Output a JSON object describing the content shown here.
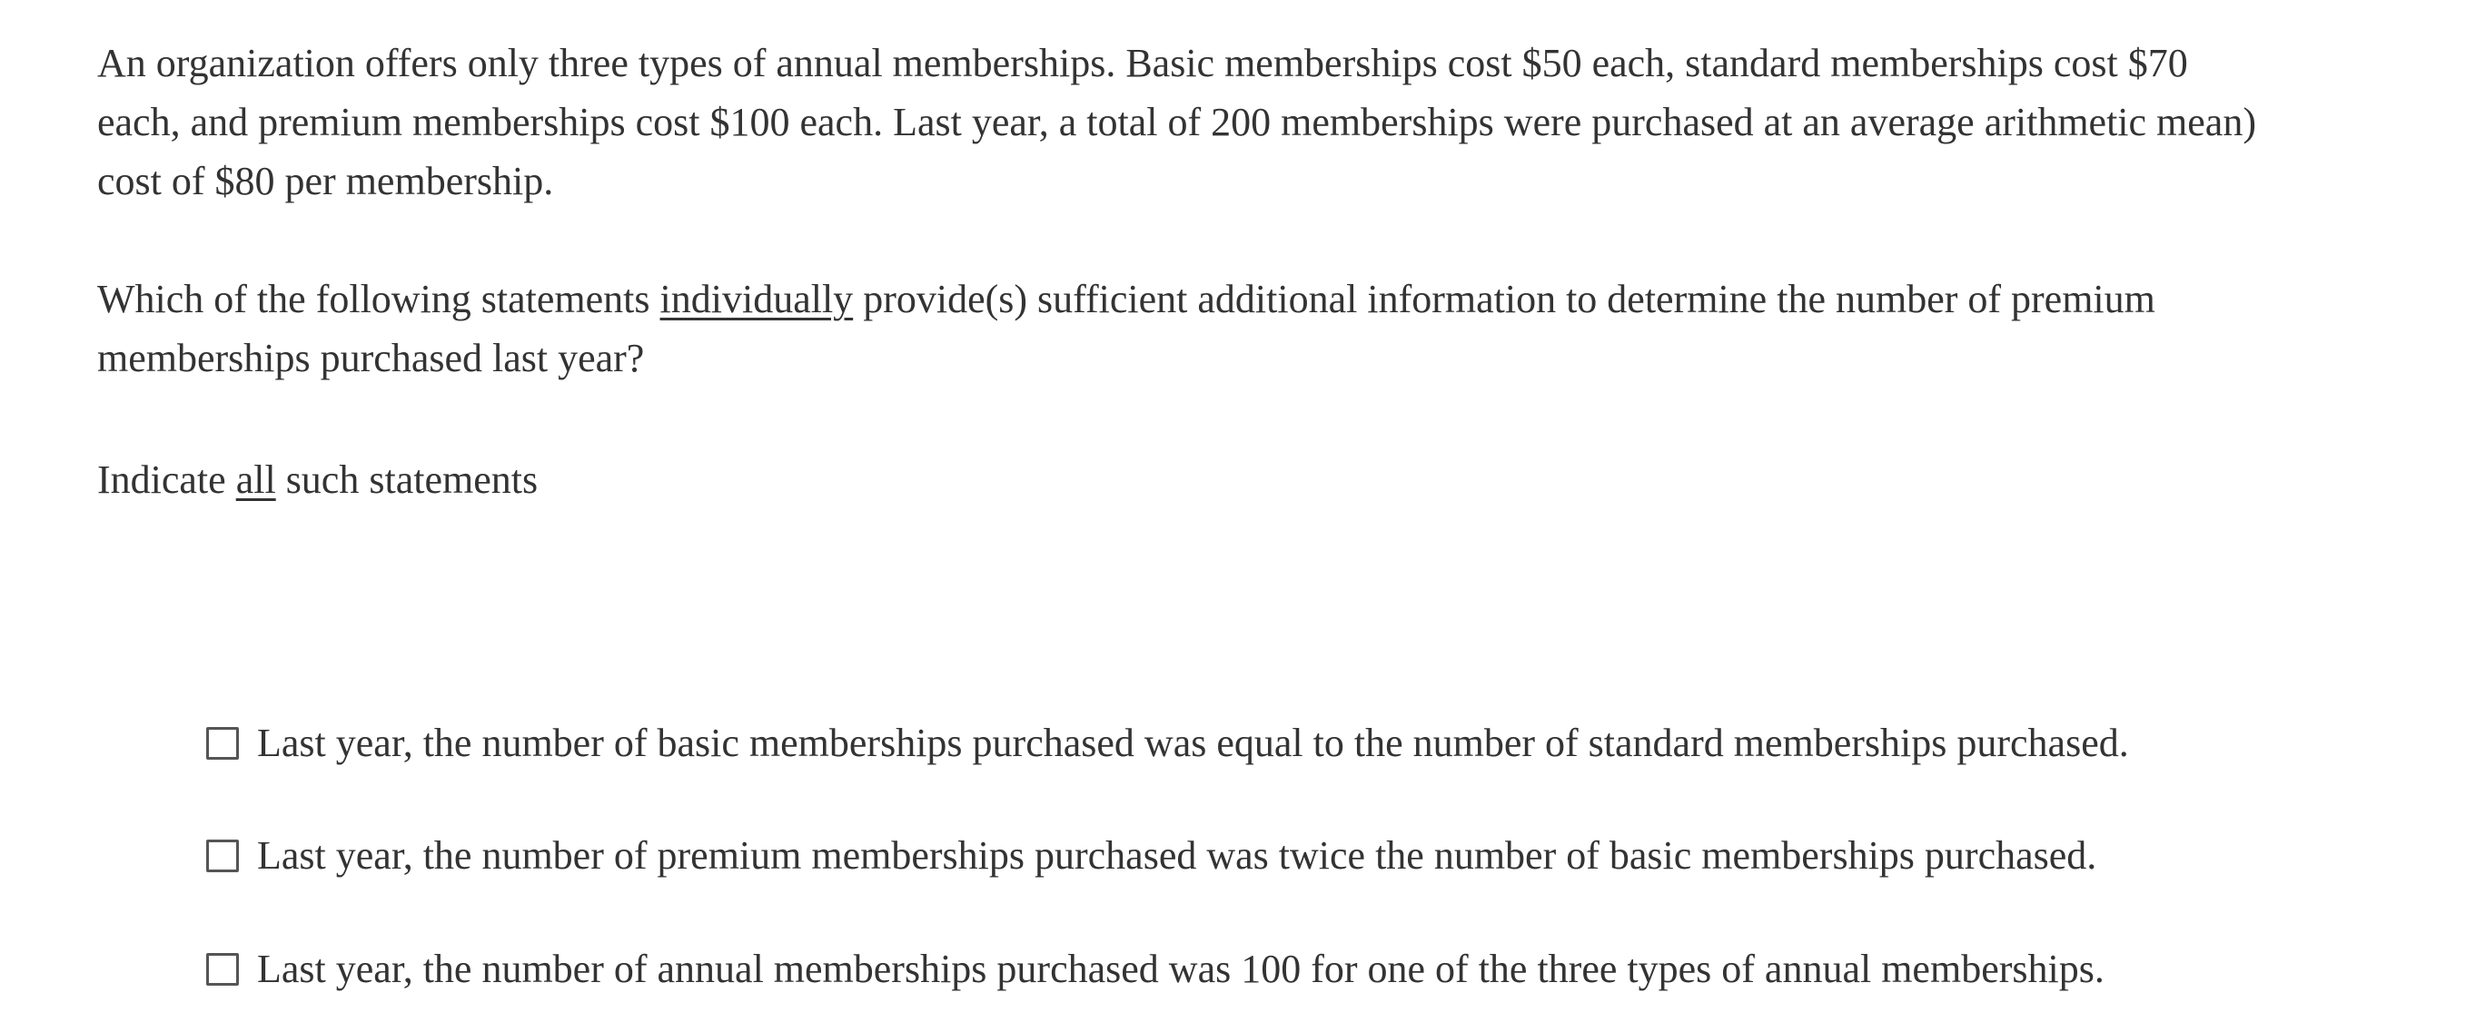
{
  "stem": {
    "lines": [
      "An organization offers only three types of annual memberships. Basic memberships cost $50 each, standard memberships cost $70",
      "each, and premium memberships cost $100 each. Last year, a total of 200 memberships were purchased at an average arithmetic mean)",
      "cost of $80 per membership."
    ]
  },
  "question": {
    "line1_before": "Which of the following statements ",
    "line1_underlined": "individually",
    "line1_after": " provide(s) sufficient additional information to determine the number of premium",
    "line2": "memberships purchased last year?"
  },
  "instruction": {
    "before": "Indicate ",
    "underlined": "all",
    "after": " such statements"
  },
  "options": [
    {
      "label": "Last year, the number of basic memberships purchased was equal to the number of standard memberships purchased.",
      "checked": false
    },
    {
      "label": "Last year, the number of premium memberships purchased was twice the number of basic memberships purchased.",
      "checked": false
    },
    {
      "label": "Last year, the number of annual memberships purchased was 100 for one of the three types of annual memberships.",
      "checked": false
    }
  ]
}
